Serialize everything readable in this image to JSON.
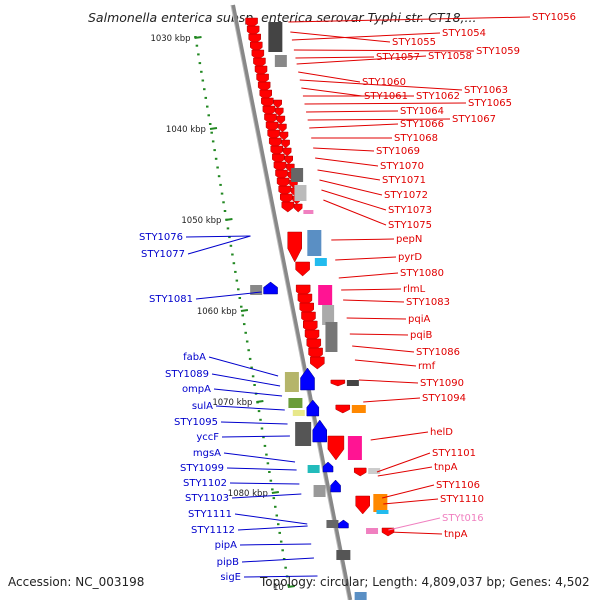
{
  "title": "Salmonella enterica subsp. enterica serovar Typhi str. CT18,...",
  "accession": "Accession: NC_003198",
  "topology": "Topology: circular; Length: 4,809,037 bp; Genes: 4,502",
  "colors": {
    "right": "#e00000",
    "left": "#0000cc",
    "faded": "#f080c0",
    "scale": "#228822",
    "backbone": "#888888"
  },
  "scale_labels": [
    "1030 kbp",
    "1040 kbp",
    "1050 kbp",
    "1060 kbp",
    "1070 kbp",
    "1080 kbp",
    "10"
  ],
  "right_labels": [
    "STY1056",
    "STY1055",
    "STY1054",
    "STY1059",
    "STY1057",
    "STY1058",
    "STY1060",
    "STY1063",
    "STY1061",
    "STY1062",
    "STY1065",
    "STY1064",
    "STY1067",
    "STY1066",
    "STY1068",
    "STY1069",
    "STY1070",
    "STY1071",
    "STY1072",
    "STY1073",
    "STY1075",
    "pepN",
    "pyrD",
    "STY1080",
    "rlmL",
    "STY1083",
    "pqiA",
    "pqiB",
    "STY1086",
    "rmf",
    "STY1090",
    "STY1094",
    "helD",
    "STY1101",
    "tnpA",
    "STY1106",
    "STY1110",
    "STYt016",
    "tnpA"
  ],
  "left_labels": [
    "STY1076",
    "STY1077",
    "STY1081",
    "fabA",
    "STY1089",
    "ompA",
    "sulA",
    "STY1095",
    "yccF",
    "mgsA",
    "STY1099",
    "STY1102",
    "STY1103",
    "STY1111",
    "STY1112",
    "pipA",
    "pipB",
    "sigE"
  ]
}
